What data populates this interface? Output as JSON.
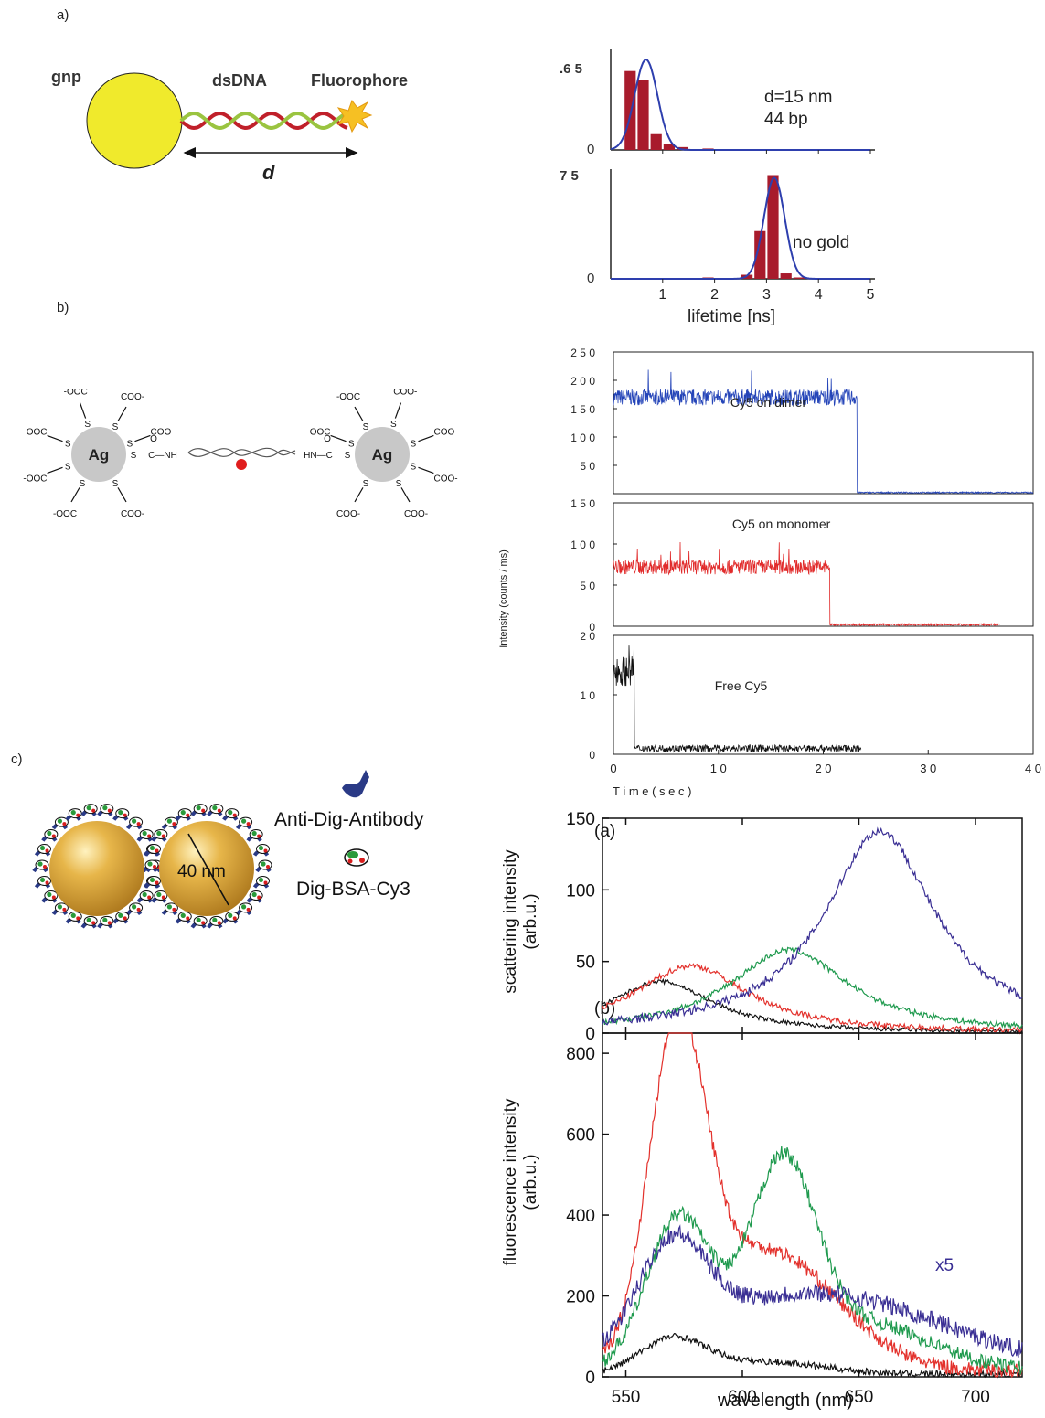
{
  "panel_labels": {
    "a": "a)",
    "b": "b)",
    "c": "c)"
  },
  "diagram_a": {
    "gnp": "gnp",
    "dsdna": "dsDNA",
    "fluorophore": "Fluorophore",
    "distance": "d",
    "colors": {
      "gnp": "#f0ea2c",
      "dna_red": "#c0202a",
      "dna_green": "#9ac440",
      "star": "#f6c023"
    }
  },
  "diagram_b": {
    "left_ag": {
      "core": "Ag",
      "groups": [
        "-OOC",
        "-OOC",
        "-OOC",
        "-OOC",
        "COO-",
        "COO-",
        "COO-"
      ]
    },
    "right_ag": {
      "core": "Ag",
      "groups": [
        "COO-",
        "COO-",
        "COO-",
        "COO-",
        "-OOC",
        "-OOC",
        "COO-"
      ]
    },
    "left_link": "C—NH",
    "right_link": "HN—C",
    "sulfur": "S",
    "oxygen": "O"
  },
  "diagram_c": {
    "size_label": "40 nm",
    "antibody_label": "Anti-Dig-Antibody",
    "bsa_label": "Dig-BSA-Cy3",
    "colors": {
      "gold": "#d9a43a",
      "antibody": "#2a3a86"
    }
  },
  "chart_data": [
    {
      "type": "bar",
      "id": "lifetime-gnp",
      "annotation": [
        "d=15 nm",
        "44 bp"
      ],
      "ytick_labels": [
        ".6 5",
        "0"
      ],
      "ylim": [
        0,
        65
      ],
      "xlim": [
        0,
        5
      ],
      "bin_width": 0.25,
      "bins_start": [
        0.25,
        0.5,
        0.75,
        1.0,
        1.25,
        1.5,
        1.75,
        2.0,
        2.25,
        2.5,
        2.75,
        3.0,
        3.25,
        3.5,
        3.75,
        4.0,
        4.25,
        4.5,
        4.75
      ],
      "values": [
        55,
        49,
        11,
        4,
        2,
        0.5,
        1,
        0.5,
        0,
        0.5,
        0,
        0.5,
        0,
        0.5,
        0,
        0.5,
        0,
        0.5,
        0
      ],
      "fit_center": 0.68,
      "fit_width": 0.22,
      "fit_amp": 63,
      "colors": {
        "bar": "#a81b2c",
        "fit": "#2e3fae"
      }
    },
    {
      "type": "bar",
      "id": "lifetime-no-gold",
      "annotation": [
        "no gold"
      ],
      "ytick_labels": [
        "7 5",
        "0"
      ],
      "ylim": [
        0,
        75
      ],
      "xlim": [
        0,
        5
      ],
      "xticks": [
        1,
        2,
        3,
        4,
        5
      ],
      "xtick_labels": [
        "1",
        "2",
        "3",
        "4",
        "5"
      ],
      "xlabel": "lifetime [ns]",
      "bin_width": 0.25,
      "bins_start": [
        1.75,
        2.5,
        2.75,
        3.0,
        3.25,
        3.5
      ],
      "values": [
        1,
        3,
        35,
        76,
        4,
        1
      ],
      "fit_center": 3.15,
      "fit_width": 0.2,
      "fit_amp": 74,
      "colors": {
        "bar": "#a81b2c",
        "fit": "#2e3fae"
      }
    },
    {
      "type": "line",
      "id": "intensity-traces",
      "ylabel": "Intensity (counts / ms)",
      "xlabel": "T i m e   ( s e c )",
      "xlim": [
        0,
        40
      ],
      "xticks": [
        0,
        10,
        20,
        30,
        40
      ],
      "xtick_labels": [
        "0",
        "1 0",
        "2 0",
        "3 0",
        "4 0"
      ],
      "series": [
        {
          "name": "Cy5 on dimer",
          "ylim": [
            0,
            250
          ],
          "yticks": [
            50,
            100,
            150,
            200,
            250
          ],
          "ytick_labels": [
            "5 0",
            "1 0 0",
            "1 5 0",
            "2 0 0",
            "2 5 0"
          ],
          "level": 170,
          "noise": 14,
          "end": 23.2,
          "after": 2,
          "stop": 40,
          "color": "#2444b8"
        },
        {
          "name": "Cy5 on monomer",
          "ylim": [
            0,
            150
          ],
          "yticks": [
            0,
            50,
            100,
            150
          ],
          "ytick_labels": [
            "0",
            "5 0",
            "1 0 0",
            "1 5 0"
          ],
          "level": 72,
          "noise": 9,
          "end": 20.6,
          "after": 2,
          "stop": 36.8,
          "color": "#e12b2b"
        },
        {
          "name": "Free Cy5",
          "ylim": [
            0,
            20
          ],
          "yticks": [
            0,
            10,
            20
          ],
          "ytick_labels": [
            "0",
            "1 0",
            "2 0"
          ],
          "level": 14,
          "noise": 2.5,
          "end": 2.0,
          "after": 1,
          "stop": 23.6,
          "color": "#111111"
        }
      ]
    },
    {
      "type": "line",
      "id": "scattering-spectra",
      "panel_tag": "(a)",
      "ylabel": [
        "scattering intensity",
        "(arb.u.)"
      ],
      "xlim": [
        540,
        720
      ],
      "ylim": [
        0,
        150
      ],
      "yticks": [
        0,
        50,
        100,
        150
      ],
      "ytick_labels": [
        "0",
        "50",
        "100",
        "150"
      ],
      "series": [
        {
          "color": "#111111",
          "peak": 565,
          "amp": 36,
          "width": 55,
          "noise": 1.5,
          "base": 0
        },
        {
          "color": "#e3312c",
          "peak": 578,
          "amp": 47,
          "width": 60,
          "noise": 2,
          "base": 0
        },
        {
          "color": "#1f9a4e",
          "peak": 620,
          "amp": 58,
          "width": 62,
          "noise": 2,
          "base": 0
        },
        {
          "color": "#3a2f94",
          "peak": 659,
          "amp": 141,
          "width": 58,
          "noise": 3,
          "base": 0
        }
      ]
    },
    {
      "type": "line",
      "id": "fluorescence-spectra",
      "panel_tag": "(b)",
      "ylabel": [
        "fluorescence intensity",
        "(arb.u.)"
      ],
      "xlabel": "wavelength (nm)",
      "annotation": "x5",
      "xlim": [
        540,
        720
      ],
      "ylim": [
        0,
        850
      ],
      "xticks": [
        550,
        600,
        650,
        700
      ],
      "xtick_labels": [
        "550",
        "600",
        "650",
        "700"
      ],
      "yticks": [
        0,
        200,
        400,
        600,
        800
      ],
      "ytick_labels": [
        "0",
        "200",
        "400",
        "600",
        "800"
      ],
      "series": [
        {
          "color": "#111111",
          "peaks": [
            [
              570,
              85,
              14
            ],
            [
              610,
              30,
              25
            ]
          ],
          "noise": 8
        },
        {
          "color": "#e3312c",
          "peaks": [
            [
              572,
              760,
              12
            ],
            [
              610,
              300,
              30
            ]
          ],
          "noise": 18
        },
        {
          "color": "#1f9a4e",
          "peaks": [
            [
              573,
              380,
              14
            ],
            [
              617,
              470,
              14
            ],
            [
              650,
              120,
              30
            ]
          ],
          "noise": 18
        },
        {
          "color": "#3a2f94",
          "peaks": [
            [
              570,
              230,
              14
            ],
            [
              630,
              190,
              55
            ]
          ],
          "noise": 22
        }
      ]
    }
  ]
}
